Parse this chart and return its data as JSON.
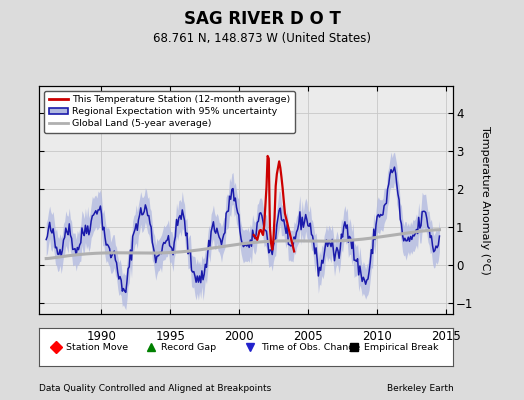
{
  "title": "SAG RIVER D O T",
  "subtitle": "68.761 N, 148.873 W (United States)",
  "ylabel": "Temperature Anomaly (°C)",
  "footer_left": "Data Quality Controlled and Aligned at Breakpoints",
  "footer_right": "Berkeley Earth",
  "xlim": [
    1985.5,
    2015.5
  ],
  "ylim": [
    -1.3,
    4.7
  ],
  "yticks": [
    -1,
    0,
    1,
    2,
    3,
    4
  ],
  "xticks": [
    1990,
    1995,
    2000,
    2005,
    2010,
    2015
  ],
  "bg_color": "#dcdcdc",
  "plot_bg": "#ebebeb",
  "legend1_labels": [
    "This Temperature Station (12-month average)",
    "Regional Expectation with 95% uncertainty",
    "Global Land (5-year average)"
  ],
  "legend2_labels": [
    "Station Move",
    "Record Gap",
    "Time of Obs. Change",
    "Empirical Break"
  ],
  "red_line_color": "#cc0000",
  "blue_line_color": "#1a1aaa",
  "blue_fill_color": "#b0b8e0",
  "gray_line_color": "#b0b0b0",
  "grid_color": "#c8c8c8",
  "seed": 42
}
